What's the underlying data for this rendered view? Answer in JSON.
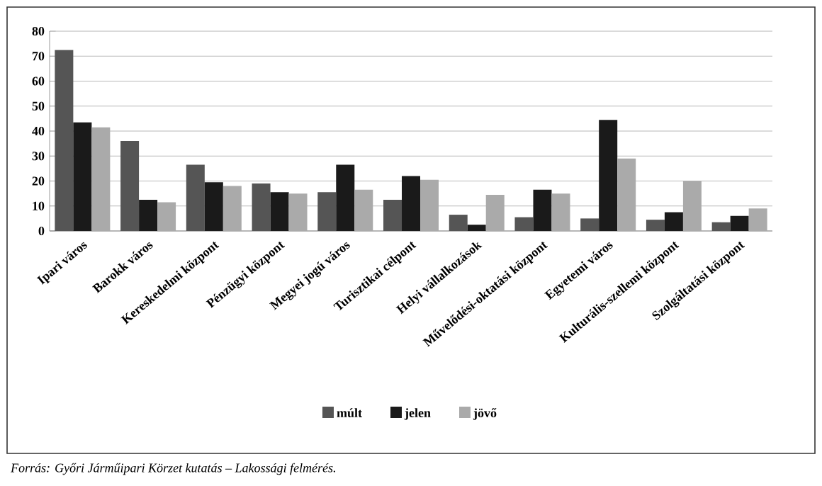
{
  "chart_data": {
    "type": "bar",
    "categories": [
      "Ipari város",
      "Barokk város",
      "Kereskedelmi központ",
      "Pénzügyi központ",
      "Megyei jogú város",
      "Turisztikai célpont",
      "Helyi vállalkozások",
      "Művelődési-oktatási központ",
      "Egyetemi város",
      "Kulturális-szellemi központ",
      "Szolgáltatási központ"
    ],
    "series": [
      {
        "name": "múlt",
        "color": "#555555",
        "values": [
          72.5,
          36,
          26.5,
          19,
          15.5,
          12.5,
          6.5,
          5.5,
          5,
          4.5,
          3.5
        ]
      },
      {
        "name": "jelen",
        "color": "#1a1a1a",
        "values": [
          43.5,
          12.5,
          19.5,
          15.5,
          26.5,
          22,
          2.5,
          16.5,
          44.5,
          7.5,
          6
        ]
      },
      {
        "name": "jövő",
        "color": "#aaaaaa",
        "values": [
          41.5,
          11.5,
          18,
          15,
          16.5,
          20.5,
          14.5,
          15,
          29,
          20,
          9
        ]
      }
    ],
    "ylim": [
      0,
      80
    ],
    "yticks": [
      0,
      10,
      20,
      30,
      40,
      50,
      60,
      70,
      80
    ],
    "grid": "y",
    "legend": "bottom",
    "annotations": [
      "*Forrás: Győri Járműipari Körzet kutatás – Lakossági felmérés.*"
    ]
  }
}
